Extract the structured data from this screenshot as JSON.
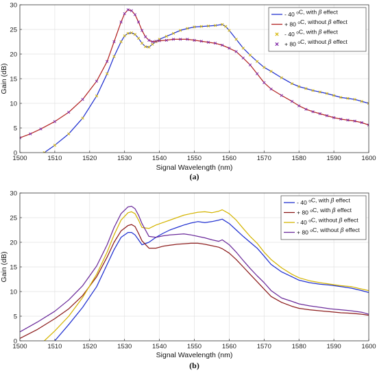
{
  "chart_data": [
    {
      "type": "line",
      "panel_label": "(a)",
      "xlabel": "Signal Wavelength (nm)",
      "ylabel": "Gain (dB)",
      "xlim": [
        1500,
        1600
      ],
      "ylim": [
        0,
        30
      ],
      "xticks": [
        1500,
        1510,
        1520,
        1530,
        1540,
        1550,
        1560,
        1570,
        1580,
        1590,
        1600
      ],
      "yticks": [
        0,
        5,
        10,
        15,
        20,
        25,
        30
      ],
      "grid": true,
      "legend_position": "top-right",
      "series": [
        {
          "name": "- 40 °C, with β effect",
          "color": "#1f2fd0",
          "style": "line",
          "x": [
            1507,
            1510,
            1514,
            1518,
            1522,
            1525,
            1527,
            1529,
            1530,
            1531,
            1532,
            1533,
            1534,
            1535,
            1536,
            1537,
            1538,
            1539,
            1540,
            1542,
            1544,
            1546,
            1548,
            1550,
            1552,
            1554,
            1556,
            1558,
            1559,
            1560,
            1562,
            1564,
            1566,
            1568,
            1570,
            1572,
            1575,
            1578,
            1580,
            1582,
            1584,
            1586,
            1588,
            1590,
            1592,
            1594,
            1596,
            1598,
            1600
          ],
          "y": [
            0,
            1.5,
            3.8,
            7,
            11.5,
            16,
            19.5,
            22.5,
            23.7,
            24.2,
            24.3,
            24,
            23.2,
            22.2,
            21.5,
            21.4,
            22,
            22.5,
            23,
            23.6,
            24.2,
            24.8,
            25.2,
            25.5,
            25.6,
            25.7,
            25.8,
            26,
            25.6,
            24.8,
            23,
            21.2,
            19.8,
            18.5,
            17.3,
            16.5,
            15.2,
            14,
            13.4,
            13,
            12.6,
            12.3,
            12.0,
            11.6,
            11.2,
            11.0,
            10.8,
            10.4,
            10.0
          ]
        },
        {
          "name": "+ 80 °C, without β effect",
          "color": "#b22222",
          "style": "line",
          "x": [
            1500,
            1503,
            1506,
            1510,
            1514,
            1518,
            1522,
            1525,
            1527,
            1529,
            1530,
            1531,
            1532,
            1533,
            1534,
            1535,
            1536,
            1537,
            1538,
            1539,
            1540,
            1542,
            1544,
            1546,
            1548,
            1550,
            1552,
            1554,
            1556,
            1558,
            1560,
            1562,
            1564,
            1566,
            1568,
            1570,
            1572,
            1575,
            1578,
            1580,
            1582,
            1584,
            1586,
            1588,
            1590,
            1592,
            1594,
            1596,
            1598,
            1600
          ],
          "y": [
            3,
            3.8,
            4.8,
            6.3,
            8.2,
            10.8,
            14.5,
            18.5,
            22.5,
            26.5,
            28.2,
            29.0,
            28.8,
            28.0,
            26.5,
            24.8,
            23.5,
            22.8,
            22.5,
            22.6,
            22.7,
            22.8,
            23.0,
            23.0,
            23.0,
            22.8,
            22.6,
            22.4,
            22.2,
            21.8,
            21.2,
            20.5,
            19.2,
            17.8,
            16.0,
            14.2,
            12.9,
            11.6,
            10.4,
            9.5,
            8.8,
            8.3,
            7.9,
            7.5,
            7.1,
            6.8,
            6.6,
            6.4,
            6.1,
            5.6
          ]
        },
        {
          "name": "- 40 °C, with β effect",
          "color": "#d4b400",
          "style": "markers-x",
          "x": [
            1507,
            1510,
            1514,
            1518,
            1522,
            1525,
            1527,
            1529,
            1530,
            1531,
            1532,
            1533,
            1534,
            1535,
            1536,
            1537,
            1538,
            1539,
            1540,
            1542,
            1544,
            1546,
            1548,
            1550,
            1552,
            1554,
            1556,
            1558,
            1559,
            1560,
            1562,
            1564,
            1566,
            1568,
            1570,
            1572,
            1575,
            1578,
            1580,
            1582,
            1584,
            1586,
            1588,
            1590,
            1592,
            1594,
            1596,
            1598,
            1600
          ],
          "y": [
            0,
            1.5,
            3.8,
            7,
            11.5,
            16,
            19.5,
            22.5,
            23.7,
            24.2,
            24.3,
            24,
            23.2,
            22.2,
            21.5,
            21.4,
            22,
            22.5,
            23,
            23.6,
            24.2,
            24.8,
            25.2,
            25.5,
            25.6,
            25.7,
            25.8,
            26,
            25.6,
            24.8,
            23,
            21.2,
            19.8,
            18.5,
            17.3,
            16.5,
            15.2,
            14,
            13.4,
            13,
            12.6,
            12.3,
            12.0,
            11.6,
            11.2,
            11.0,
            10.8,
            10.4,
            10.0
          ]
        },
        {
          "name": "+ 80 °C, without β effect",
          "color": "#7a1fa2",
          "style": "markers-x",
          "x": [
            1500,
            1503,
            1506,
            1510,
            1514,
            1518,
            1522,
            1525,
            1527,
            1529,
            1530,
            1531,
            1532,
            1533,
            1534,
            1535,
            1536,
            1537,
            1538,
            1539,
            1540,
            1542,
            1544,
            1546,
            1548,
            1550,
            1552,
            1554,
            1556,
            1558,
            1560,
            1562,
            1564,
            1566,
            1568,
            1570,
            1572,
            1575,
            1578,
            1580,
            1582,
            1584,
            1586,
            1588,
            1590,
            1592,
            1594,
            1596,
            1598,
            1600
          ],
          "y": [
            3,
            3.8,
            4.8,
            6.3,
            8.2,
            10.8,
            14.5,
            18.5,
            22.5,
            26.5,
            28.2,
            29.0,
            28.8,
            28.0,
            26.5,
            24.8,
            23.5,
            22.8,
            22.5,
            22.6,
            22.7,
            22.8,
            23.0,
            23.0,
            23.0,
            22.8,
            22.6,
            22.4,
            22.2,
            21.8,
            21.2,
            20.5,
            19.2,
            17.8,
            16.0,
            14.2,
            12.9,
            11.6,
            10.4,
            9.5,
            8.8,
            8.3,
            7.9,
            7.5,
            7.1,
            6.8,
            6.6,
            6.4,
            6.1,
            5.6
          ]
        }
      ]
    },
    {
      "type": "line",
      "panel_label": "(b)",
      "xlabel": "Signal Wavelength (nm)",
      "ylabel": "Gain (dB)",
      "xlim": [
        1500,
        1600
      ],
      "ylim": [
        0,
        30
      ],
      "xticks": [
        1500,
        1510,
        1520,
        1530,
        1540,
        1550,
        1560,
        1570,
        1580,
        1590,
        1600
      ],
      "yticks": [
        0,
        5,
        10,
        15,
        20,
        25,
        30
      ],
      "grid": true,
      "legend_position": "top-right",
      "series": [
        {
          "name": "- 40 °C, with β effect",
          "color": "#1f2fd0",
          "style": "line",
          "x": [
            1510,
            1514,
            1518,
            1522,
            1525,
            1527,
            1529,
            1531,
            1532,
            1533,
            1534,
            1535,
            1537,
            1539,
            1541,
            1543,
            1545,
            1547,
            1549,
            1551,
            1553,
            1555,
            1557,
            1558,
            1560,
            1562,
            1564,
            1566,
            1568,
            1570,
            1572,
            1575,
            1578,
            1580,
            1583,
            1586,
            1589,
            1592,
            1595,
            1598,
            1600
          ],
          "y": [
            0,
            3.3,
            6.8,
            11,
            15.5,
            18.5,
            21,
            22,
            22,
            21.5,
            20.5,
            19.5,
            20,
            21,
            21.8,
            22.5,
            23,
            23.5,
            23.9,
            24.2,
            24.0,
            24.2,
            24.5,
            24.7,
            23.8,
            22.5,
            21.2,
            20.0,
            18.8,
            17.2,
            15.5,
            14.0,
            13.0,
            12.3,
            11.8,
            11.5,
            11.3,
            11.0,
            10.7,
            10.2,
            9.8
          ]
        },
        {
          "name": "+ 80 °C, with β effect",
          "color": "#8b1a1a",
          "style": "line",
          "x": [
            1500,
            1505,
            1510,
            1514,
            1518,
            1522,
            1525,
            1527,
            1529,
            1531,
            1532,
            1533,
            1534,
            1535,
            1537,
            1539,
            1541,
            1543,
            1545,
            1547,
            1549,
            1551,
            1553,
            1555,
            1557,
            1558,
            1560,
            1562,
            1564,
            1566,
            1568,
            1570,
            1572,
            1575,
            1578,
            1580,
            1583,
            1586,
            1589,
            1592,
            1595,
            1598,
            1600
          ],
          "y": [
            0.5,
            2.3,
            4.5,
            6.5,
            9.2,
            13,
            17,
            20,
            22.3,
            23.4,
            23.6,
            23.2,
            21.8,
            20.3,
            18.8,
            18.8,
            19.2,
            19.4,
            19.6,
            19.7,
            19.8,
            19.8,
            19.6,
            19.3,
            19.0,
            18.7,
            17.8,
            16.5,
            15.0,
            13.5,
            12.0,
            10.5,
            9.0,
            7.8,
            7.0,
            6.6,
            6.3,
            6.1,
            5.9,
            5.7,
            5.6,
            5.4,
            5.2
          ]
        },
        {
          "name": "- 40 °C, without β effect",
          "color": "#d4b400",
          "style": "line",
          "x": [
            1507,
            1510,
            1514,
            1518,
            1522,
            1525,
            1527,
            1529,
            1531,
            1532,
            1533,
            1534,
            1535,
            1537,
            1539,
            1541,
            1543,
            1545,
            1547,
            1549,
            1551,
            1553,
            1555,
            1557,
            1558,
            1560,
            1562,
            1564,
            1566,
            1568,
            1570,
            1572,
            1575,
            1578,
            1580,
            1583,
            1586,
            1589,
            1592,
            1595,
            1598,
            1600
          ],
          "y": [
            0,
            2.0,
            5.0,
            8.8,
            13.5,
            18.0,
            21.5,
            24.5,
            26.0,
            26.2,
            25.8,
            24.5,
            23.0,
            22.8,
            23.5,
            24.0,
            24.5,
            25.0,
            25.5,
            25.8,
            26.1,
            26.2,
            26.0,
            26.3,
            26.6,
            25.8,
            24.5,
            22.8,
            21.2,
            19.8,
            18.0,
            16.5,
            14.8,
            13.5,
            12.8,
            12.2,
            11.8,
            11.5,
            11.2,
            11.0,
            10.5,
            10.2
          ]
        },
        {
          "name": "+ 80 °C, without β effect",
          "color": "#6a2a9a",
          "style": "line",
          "x": [
            1500,
            1505,
            1510,
            1514,
            1518,
            1522,
            1525,
            1527,
            1529,
            1531,
            1532,
            1533,
            1534,
            1535,
            1537,
            1539,
            1541,
            1543,
            1545,
            1547,
            1549,
            1551,
            1553,
            1555,
            1557,
            1558,
            1560,
            1562,
            1564,
            1566,
            1568,
            1570,
            1572,
            1575,
            1578,
            1580,
            1583,
            1586,
            1589,
            1592,
            1595,
            1598,
            1600
          ],
          "y": [
            1.8,
            3.8,
            6.0,
            8.3,
            11.2,
            15.2,
            19.5,
            23.0,
            25.8,
            27.2,
            27.3,
            26.8,
            25.5,
            23.8,
            21.2,
            21.0,
            21.3,
            21.5,
            21.6,
            21.7,
            21.5,
            21.2,
            20.9,
            20.5,
            20.2,
            20.5,
            19.5,
            18.0,
            16.3,
            14.7,
            13.2,
            11.8,
            10.2,
            8.7,
            8.0,
            7.5,
            7.1,
            6.8,
            6.5,
            6.3,
            6.1,
            5.8,
            5.4
          ]
        }
      ]
    }
  ]
}
